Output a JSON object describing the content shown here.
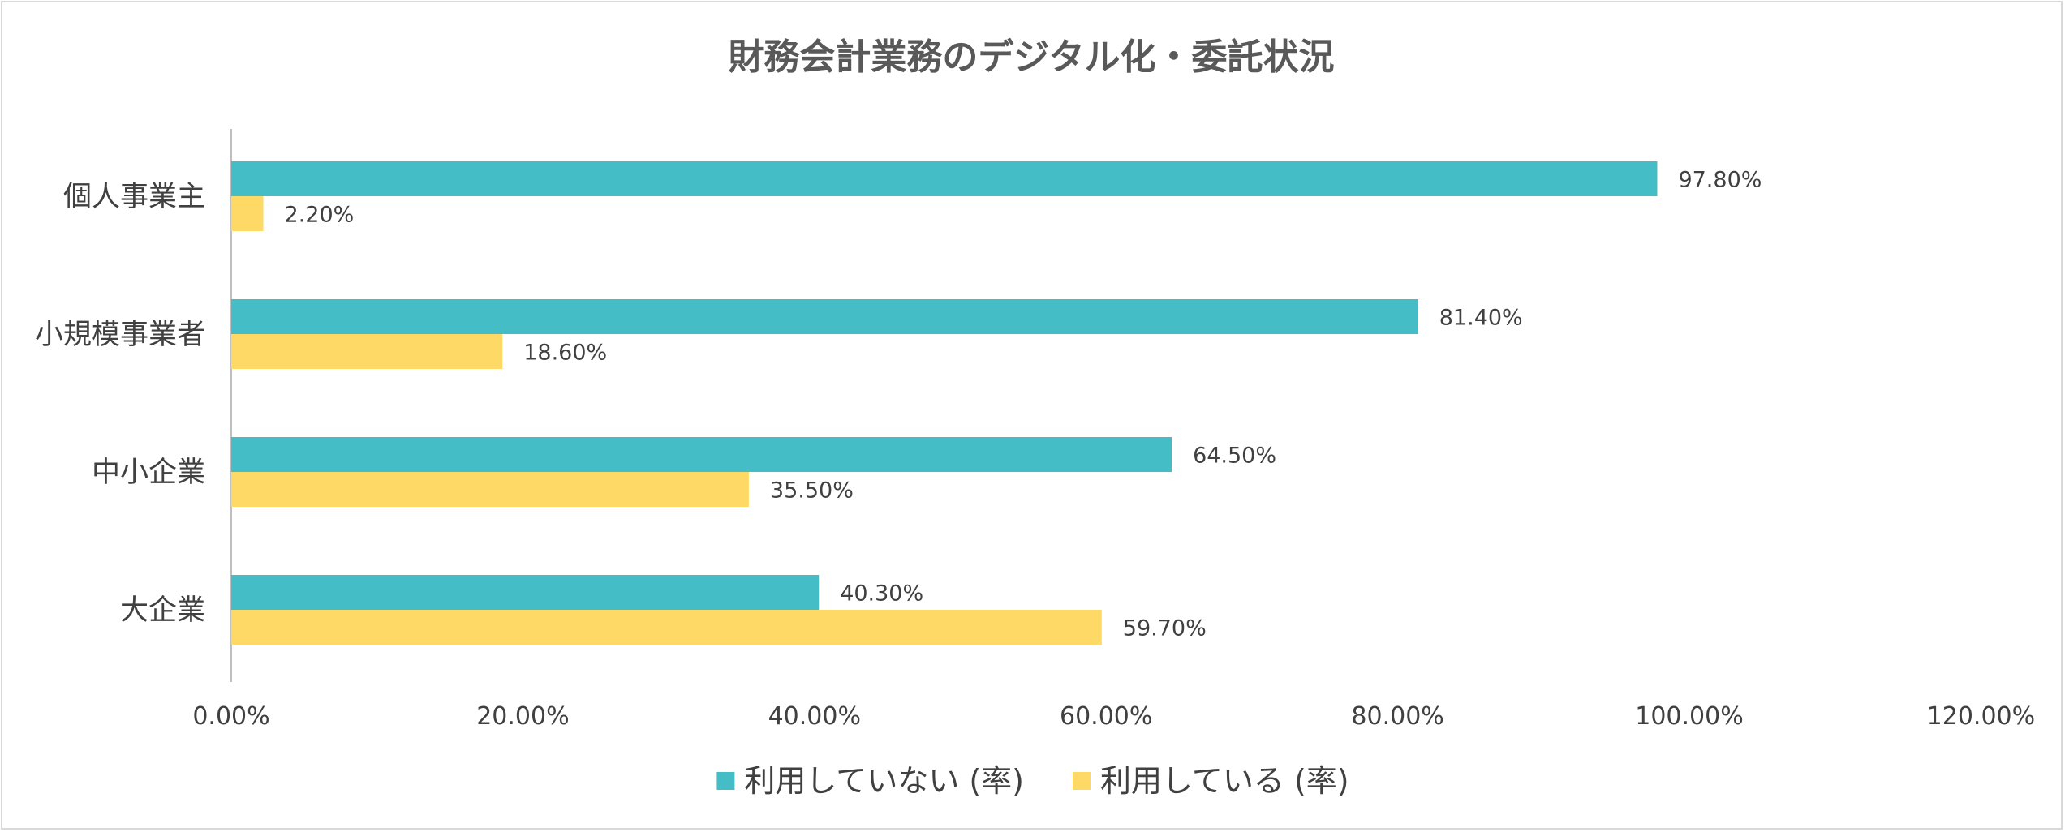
{
  "chart_data": {
    "type": "bar",
    "orientation": "horizontal",
    "title": "財務会計業務のデジタル化・委託状況",
    "categories": [
      "個人事業主",
      "小規模事業者",
      "中小企業",
      "大企業"
    ],
    "series": [
      {
        "name": "利用していない (率)",
        "color": "#45BDC6",
        "values": [
          97.8,
          81.4,
          64.5,
          40.3
        ],
        "labels": [
          "97.80%",
          "81.40%",
          "64.50%",
          "40.30%"
        ]
      },
      {
        "name": "利用している (率)",
        "color": "#FED966",
        "values": [
          2.2,
          18.6,
          35.5,
          59.7
        ],
        "labels": [
          "2.20%",
          "18.60%",
          "35.50%",
          "59.70%"
        ]
      }
    ],
    "xlim": [
      0,
      120
    ],
    "xticks": [
      0,
      20,
      40,
      60,
      80,
      100,
      120
    ],
    "xtick_labels": [
      "0.00%",
      "20.00%",
      "40.00%",
      "60.00%",
      "80.00%",
      "100.00%",
      "120.00%"
    ],
    "grid": false,
    "legend_position": "bottom"
  }
}
